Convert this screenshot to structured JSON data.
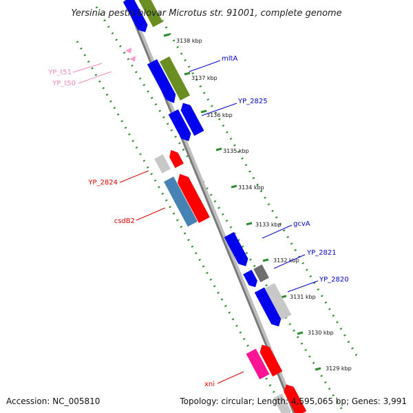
{
  "title": "Yersinia pestis biovar Microtus str. 91001, complete genome",
  "footer": {
    "accession": "Accession: NC_005810",
    "topology": "Topology: circular; Length: 4,595,065 bp; Genes: 3,991"
  },
  "colors": {
    "backbone": "#8a8a8a",
    "dots": "#2e8b2e",
    "plus_blue": "#0000ee",
    "olive": "#6b8e23",
    "red": "#ff0000",
    "steel": "#4682b4",
    "grey": "#c0c0c0",
    "dark_grey": "#6e6e6e",
    "pink": "#ff1493",
    "trna": "#ff99cc"
  },
  "ticks": [
    "3138 kbp",
    "3137 kbp",
    "3136 kbp",
    "3135 kbp",
    "3134 kbp",
    "3133 kbp",
    "3132 kbp",
    "3131 kbp",
    "3130 kbp",
    "3129 kbp"
  ],
  "gene_labels": [
    {
      "text": "mltA",
      "color": "#0000cc"
    },
    {
      "text": "YP_2825",
      "color": "#0000cc"
    },
    {
      "text": "gcvA",
      "color": "#0000cc"
    },
    {
      "text": "YP_2821",
      "color": "#0000cc"
    },
    {
      "text": "YP_2820",
      "color": "#0000cc"
    },
    {
      "text": "YP_t51",
      "color": "#ee88bb"
    },
    {
      "text": "YP_t50",
      "color": "#ee88bb"
    },
    {
      "text": "YP_2824",
      "color": "#dd0000"
    },
    {
      "text": "csdB2",
      "color": "#dd0000"
    },
    {
      "text": "xni",
      "color": "#dd0000"
    }
  ]
}
